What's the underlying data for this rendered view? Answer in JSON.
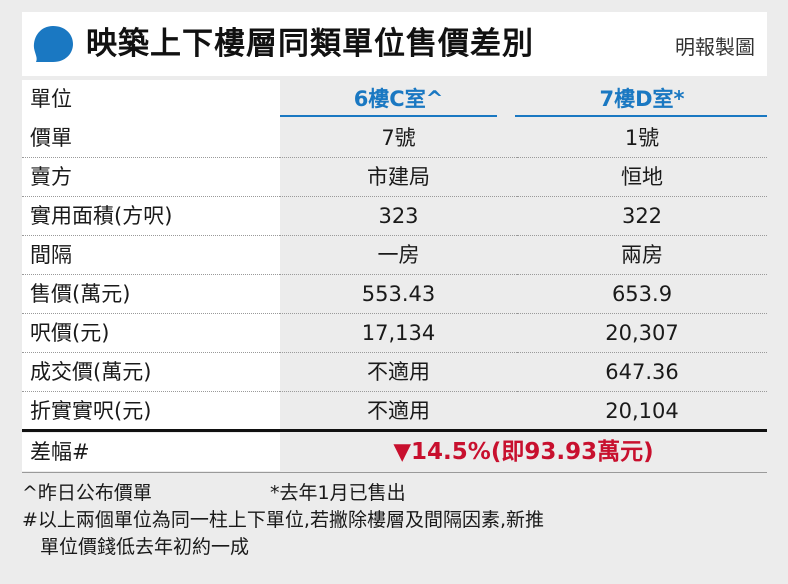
{
  "title": "映築上下樓層同類單位售價差別",
  "credit": "明報製圖",
  "colors": {
    "accent_blue": "#1a78c2",
    "highlight_red": "#c8102e",
    "panel_grey": "#ececec"
  },
  "header": {
    "label": "單位",
    "unit_a": "6樓C室^",
    "unit_b": "7樓D室*"
  },
  "rows": [
    {
      "label": "價單",
      "a": "7號",
      "b": "1號"
    },
    {
      "label": "賣方",
      "a": "市建局",
      "b": "恒地"
    },
    {
      "label": "實用面積(方呎)",
      "a": "323",
      "b": "322"
    },
    {
      "label": "間隔",
      "a": "一房",
      "b": "兩房"
    },
    {
      "label": "售價(萬元)",
      "a": "553.43",
      "b": "653.9"
    },
    {
      "label": "呎價(元)",
      "a": "17,134",
      "b": "20,307"
    },
    {
      "label": "成交價(萬元)",
      "a": "不適用",
      "b": "647.36"
    },
    {
      "label": "折實實呎(元)",
      "a": "不適用",
      "b": "20,104"
    }
  ],
  "result": {
    "label": "差幅#",
    "value": "▼14.5%(即93.93萬元)"
  },
  "notes": {
    "note_a": "^昨日公布價單",
    "note_b": "*去年1月已售出",
    "note_c_line1": "#以上兩個單位為同一柱上下單位,若撇除樓層及間隔因素,新推",
    "note_c_line2": "單位價錢低去年初約一成"
  }
}
